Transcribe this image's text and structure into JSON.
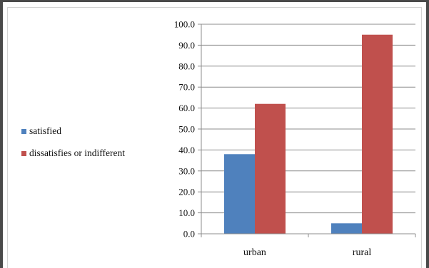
{
  "chart_data": {
    "type": "bar",
    "categories": [
      "urban",
      "rural"
    ],
    "series": [
      {
        "name": "satisfied",
        "values": [
          38.0,
          5.0
        ],
        "color": "#4f81bd"
      },
      {
        "name": "dissatisfies or indifferent",
        "values": [
          62.0,
          95.0
        ],
        "color": "#c0504d"
      }
    ],
    "ylim": [
      0,
      100
    ],
    "y_ticks": [
      "0.0",
      "10.0",
      "20.0",
      "30.0",
      "40.0",
      "50.0",
      "60.0",
      "70.0",
      "80.0",
      "90.0",
      "100.0"
    ],
    "grid": "horizontal",
    "legend_position": "left",
    "title": "",
    "xlabel": "",
    "ylabel": ""
  }
}
